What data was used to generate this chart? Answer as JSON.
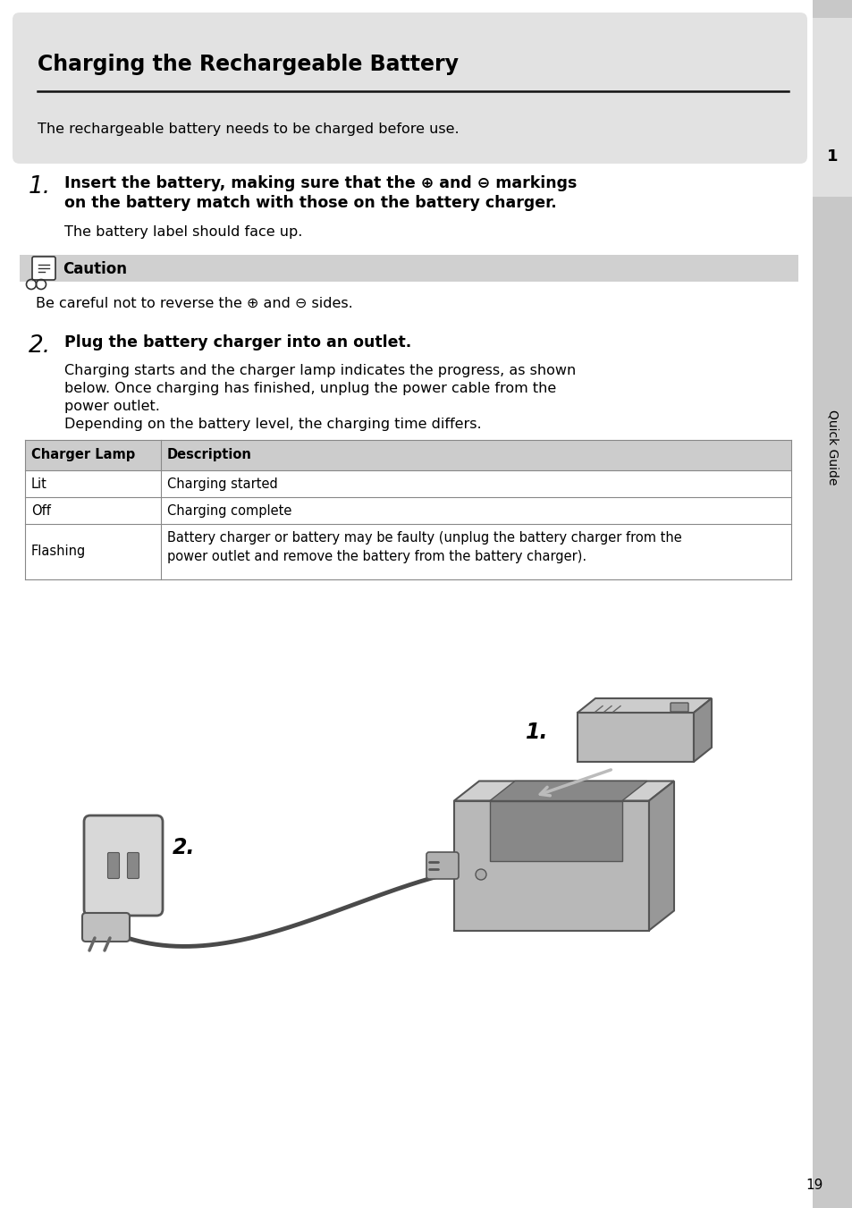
{
  "title": "Charging the Rechargeable Battery",
  "subtitle": "The rechargeable battery needs to be charged before use.",
  "step1_num": "1.",
  "step1_bold_line1": "Insert the battery, making sure that the ⊕ and ⊖ markings",
  "step1_bold_line2": "on the battery match with those on the battery charger.",
  "step1_sub": "The battery label should face up.",
  "caution_label": "Caution",
  "caution_text": "Be careful not to reverse the ⊕ and ⊖ sides.",
  "step2_num": "2.",
  "step2_bold": "Plug the battery charger into an outlet.",
  "step2_text1a": "Charging starts and the charger lamp indicates the progress, as shown",
  "step2_text1b": "below. Once charging has finished, unplug the power cable from the",
  "step2_text1c": "power outlet.",
  "step2_text2": "Depending on the battery level, the charging time differs.",
  "table_headers": [
    "Charger Lamp",
    "Description"
  ],
  "table_rows": [
    [
      "Lit",
      "Charging started"
    ],
    [
      "Off",
      "Charging complete"
    ],
    [
      "Flashing",
      "Battery charger or battery may be faulty (unplug the battery charger from the\npower outlet and remove the battery from the battery charger)."
    ]
  ],
  "page_number": "19",
  "sidebar_text": "Quick Guide",
  "sidebar_number": "1",
  "bg_color": "#ffffff",
  "sidebar_bg": "#c8c8c8",
  "title_box_bg": "#e2e2e2",
  "caution_bg": "#d0d0d0",
  "table_header_bg": "#cccccc",
  "grid_color": "#888888",
  "diag_label1": "1.",
  "diag_label2": "2."
}
